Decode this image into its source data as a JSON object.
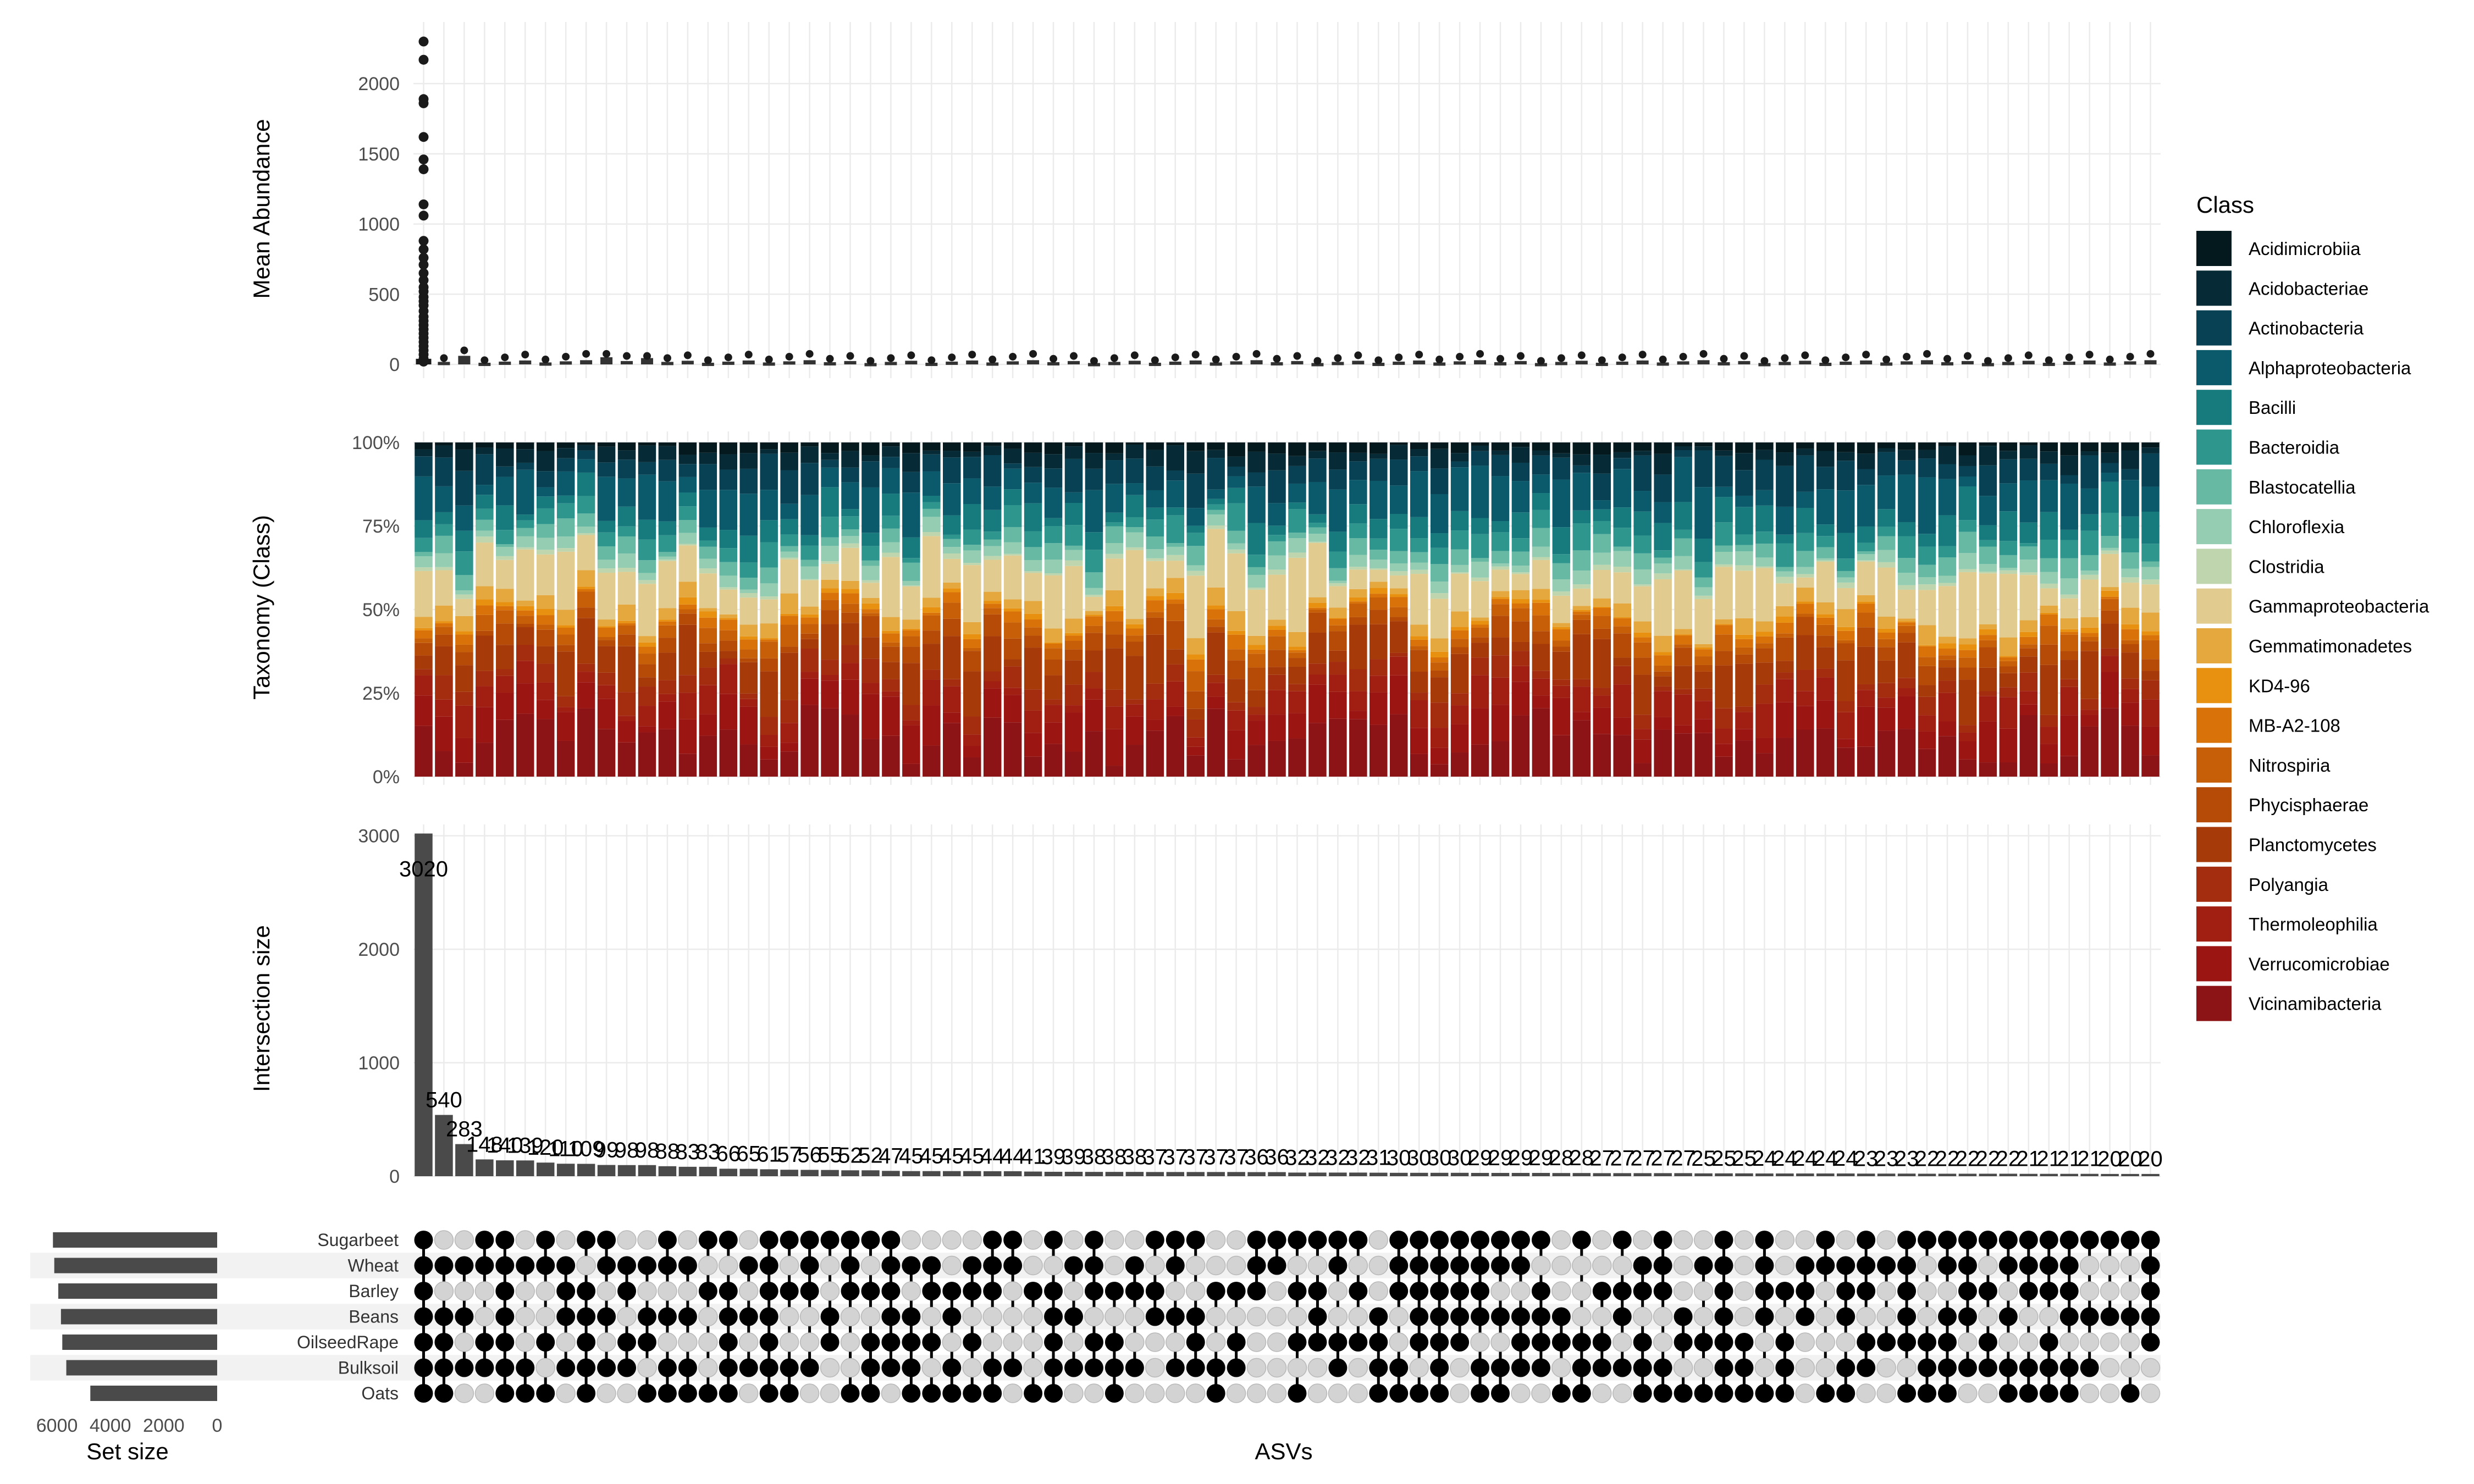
{
  "chart_data": [
    {
      "panel": "mean-abundance",
      "type": "scatter",
      "ylabel": "Mean Abundance",
      "ylim": [
        0,
        2400
      ],
      "yticks": [
        0,
        500,
        1000,
        1500,
        2000
      ],
      "ytick_labels": [
        "0",
        "500",
        "1000",
        "1500",
        "2000"
      ],
      "first_column_points": [
        2300,
        2170,
        1890,
        1860,
        1620,
        1460,
        1390,
        1140,
        1060,
        880,
        820,
        760,
        710,
        650,
        600,
        550,
        520,
        480,
        450,
        420,
        380,
        340,
        310,
        280,
        250,
        220,
        190,
        160,
        130,
        100,
        70,
        40,
        20
      ],
      "grid": true
    },
    {
      "panel": "taxonomy",
      "type": "bar",
      "stacked": true,
      "ylabel": "Taxonomy (Class)",
      "ylim": [
        0,
        100
      ],
      "yticks": [
        0,
        25,
        50,
        75,
        100
      ],
      "ytick_labels": [
        "0%",
        "25%",
        "50%",
        "75%",
        "100%"
      ],
      "legend": {
        "title": "Class",
        "position": "right",
        "classes": [
          {
            "name": "Acidimicrobiia",
            "color": "#03191e"
          },
          {
            "name": "Acidobacteriae",
            "color": "#062b36"
          },
          {
            "name": "Actinobacteria",
            "color": "#084154"
          },
          {
            "name": "Alphaproteobacteria",
            "color": "#0b5a6b"
          },
          {
            "name": "Bacilli",
            "color": "#177a7d"
          },
          {
            "name": "Bacteroidia",
            "color": "#2f968e"
          },
          {
            "name": "Blastocatellia",
            "color": "#67b9a3"
          },
          {
            "name": "Chloroflexia",
            "color": "#95cdb2"
          },
          {
            "name": "Clostridia",
            "color": "#bfd5ae"
          },
          {
            "name": "Gammaproteobacteria",
            "color": "#e2cb8f"
          },
          {
            "name": "Gemmatimonadetes",
            "color": "#e4a83f"
          },
          {
            "name": "KD4-96",
            "color": "#e8900f"
          },
          {
            "name": "MB-A2-108",
            "color": "#d97309"
          },
          {
            "name": "Nitrospiria",
            "color": "#c65f08"
          },
          {
            "name": "Phycisphaerae",
            "color": "#b64a07"
          },
          {
            "name": "Planctomycetes",
            "color": "#a63a09"
          },
          {
            "name": "Polyangia",
            "color": "#a42c0f"
          },
          {
            "name": "Thermoleophilia",
            "color": "#a11e12"
          },
          {
            "name": "Verrucomicrobiae",
            "color": "#9b1513"
          },
          {
            "name": "Vicinamibacteria",
            "color": "#8c1416"
          }
        ]
      }
    },
    {
      "panel": "intersection-size",
      "type": "bar",
      "ylabel": "Intersection size",
      "ylim": [
        0,
        3000
      ],
      "yticks": [
        0,
        1000,
        2000,
        3000
      ],
      "ytick_labels": [
        "0",
        "1000",
        "2000",
        "3000"
      ],
      "xlabel": "ASVs",
      "values": [
        3020,
        540,
        283,
        148,
        140,
        139,
        120,
        110,
        109,
        99,
        98,
        98,
        88,
        83,
        83,
        66,
        65,
        61,
        57,
        56,
        55,
        52,
        52,
        47,
        45,
        45,
        45,
        45,
        44,
        44,
        41,
        39,
        39,
        38,
        38,
        38,
        37,
        37,
        37,
        37,
        37,
        36,
        36,
        32,
        32,
        32,
        32,
        31,
        30,
        30,
        30,
        30,
        29,
        29,
        29,
        29,
        28,
        28,
        27,
        27,
        27,
        27,
        27,
        25,
        25,
        25,
        24,
        24,
        24,
        24,
        24,
        23,
        23,
        23,
        22,
        22,
        22,
        22,
        22,
        21,
        21,
        21,
        21,
        20,
        20,
        20
      ],
      "value_labels": [
        "3020",
        "540",
        "283",
        "148",
        "140",
        "139",
        "120",
        "110",
        "109",
        "99",
        "98",
        "98",
        "88",
        "83",
        "83",
        "66",
        "65",
        "61",
        "57",
        "56",
        "55",
        "52",
        "52",
        "47",
        "45",
        "45",
        "45",
        "45",
        "44",
        "44",
        "41",
        "39",
        "39",
        "38",
        "38",
        "38",
        "37",
        "37",
        "37",
        "37",
        "37",
        "36",
        "36",
        "32",
        "32",
        "32",
        "32",
        "31",
        "30",
        "30",
        "30",
        "30",
        "29",
        "29",
        "29",
        "29",
        "28",
        "28",
        "27",
        "27",
        "27",
        "27",
        "27",
        "25",
        "25",
        "25",
        "24",
        "24",
        "24",
        "24",
        "24",
        "23",
        "23",
        "23",
        "22",
        "22",
        "22",
        "22",
        "22",
        "21",
        "21",
        "21",
        "21",
        "20",
        "20",
        "20"
      ]
    },
    {
      "panel": "set-size",
      "type": "bar",
      "orientation": "horizontal",
      "xlabel": "Set size",
      "xlim": [
        7000,
        0
      ],
      "xticks": [
        6000,
        4000,
        2000,
        0
      ],
      "xtick_labels": [
        "6000",
        "4000",
        "2000",
        "0"
      ],
      "sets": [
        "Sugarbeet",
        "Wheat",
        "Barley",
        "Beans",
        "OilseedRape",
        "Bulksoil",
        "Oats"
      ],
      "values": [
        6150,
        6100,
        5950,
        5850,
        5800,
        5650,
        4750
      ]
    }
  ]
}
